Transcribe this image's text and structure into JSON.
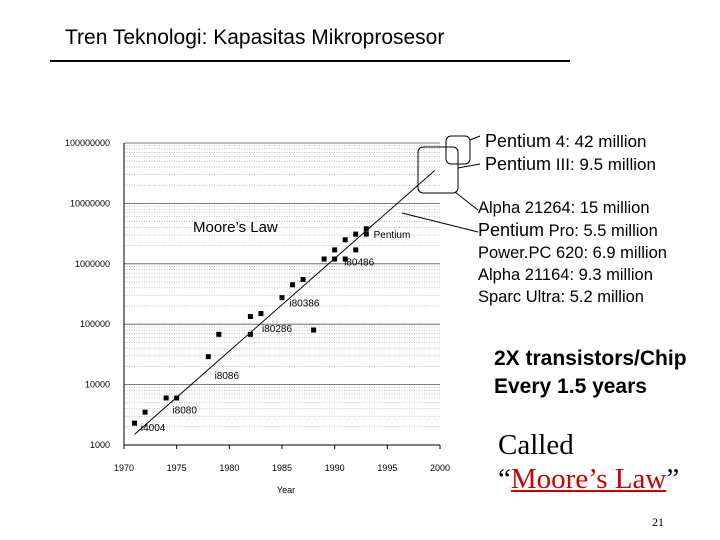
{
  "slide": {
    "title": "Tren Teknologi: Kapasitas Mikroprosesor",
    "page_number": "21"
  },
  "callouts": {
    "top": [
      {
        "bold": "Pentium",
        "rest": " 4: 42 million"
      },
      {
        "bold": "Pentium",
        "rest": " III: 9.5 million"
      }
    ],
    "mid": [
      {
        "bold": "Alpha",
        "rest": " 21264: 15 million"
      },
      {
        "bold": "Pentium",
        "rest": " Pro: 5.5 million"
      },
      {
        "bold": "Power.PC",
        "rest": " 620: 6.9 million"
      },
      {
        "bold": "Alpha",
        "rest": " 21164: 9.3 million"
      },
      {
        "bold": "Sparc",
        "rest": " Ultra: 5.2 million"
      }
    ]
  },
  "rule_text": {
    "line1": "2X transistors/Chip",
    "line2": "Every 1.5 years"
  },
  "called": {
    "line1": "Called",
    "open_quote": "“",
    "name": "Moore’s Law",
    "close_quote": "”"
  },
  "chart_data": {
    "type": "scatter",
    "xlabel": "Year",
    "ylabel": "",
    "xlim": [
      1970,
      2000
    ],
    "ylim": [
      1000,
      100000000
    ],
    "log_y": true,
    "x_ticks": [
      1970,
      1975,
      1980,
      1985,
      1990,
      1995,
      2000
    ],
    "y_tick_labels": [
      "1000",
      "10000",
      "100000",
      "1000000",
      "10000000",
      "100000000"
    ],
    "y_tick_values": [
      1000,
      10000,
      100000,
      1000000,
      10000000,
      100000000
    ],
    "grid": true,
    "trend_label": "Moore’s Law",
    "trend_line": {
      "x": [
        1971,
        1999.5
      ],
      "y": [
        1500,
        35000000
      ]
    },
    "points": [
      {
        "x": 1971,
        "y": 2300
      },
      {
        "x": 1972,
        "y": 3500
      },
      {
        "x": 1974,
        "y": 6000
      },
      {
        "x": 1975,
        "y": 6000
      },
      {
        "x": 1978,
        "y": 29000
      },
      {
        "x": 1979,
        "y": 68000
      },
      {
        "x": 1982,
        "y": 68000
      },
      {
        "x": 1982,
        "y": 134000
      },
      {
        "x": 1983,
        "y": 150000
      },
      {
        "x": 1985,
        "y": 275000
      },
      {
        "x": 1986,
        "y": 450000
      },
      {
        "x": 1987,
        "y": 550000
      },
      {
        "x": 1988,
        "y": 80000
      },
      {
        "x": 1989,
        "y": 1200000
      },
      {
        "x": 1990,
        "y": 1200000
      },
      {
        "x": 1990,
        "y": 1700000
      },
      {
        "x": 1991,
        "y": 1200000
      },
      {
        "x": 1991,
        "y": 2500000
      },
      {
        "x": 1992,
        "y": 1700000
      },
      {
        "x": 1992,
        "y": 3100000
      },
      {
        "x": 1993,
        "y": 3100000
      },
      {
        "x": 1993,
        "y": 3800000
      }
    ],
    "point_labels": [
      {
        "text": "i4004",
        "x": 1971.6,
        "y": 1900
      },
      {
        "text": "i8080",
        "x": 1974.6,
        "y": 3700
      },
      {
        "text": "i8086",
        "x": 1978.6,
        "y": 14000
      },
      {
        "text": "i80286",
        "x": 1983.1,
        "y": 84000
      },
      {
        "text": "i80386",
        "x": 1985.7,
        "y": 220000
      },
      {
        "text": "i80486",
        "x": 1990.9,
        "y": 1050000
      },
      {
        "text": "Pentium",
        "x": 1993.7,
        "y": 3000000
      }
    ]
  }
}
